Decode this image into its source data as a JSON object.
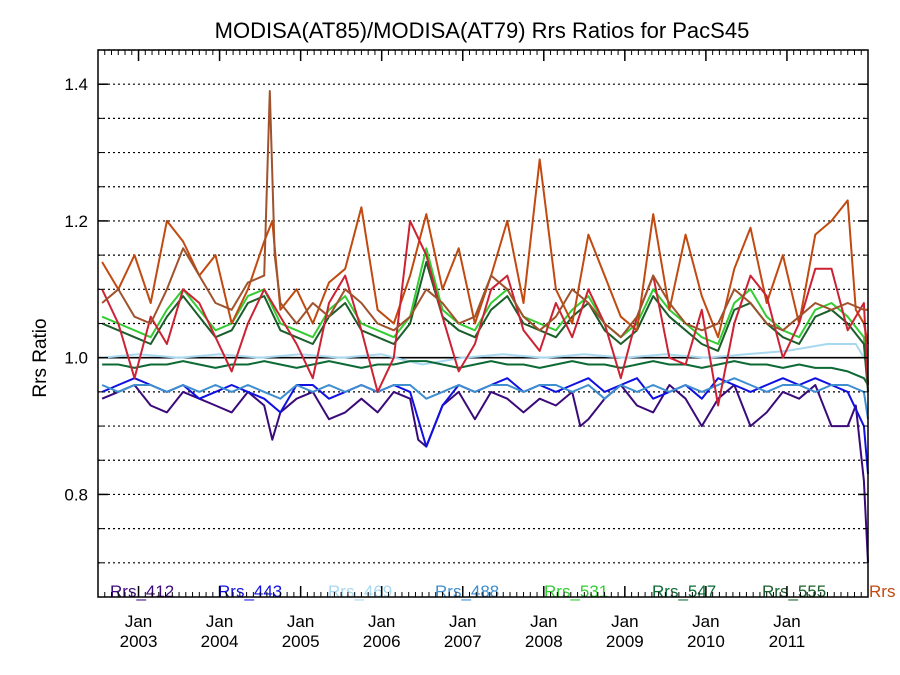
{
  "chart_data": {
    "type": "line",
    "title": "MODISA(AT85)/MODISA(AT79)  Rrs Ratios for PacS45",
    "ylabel": "Rrs Ratio",
    "xlabel": "",
    "xlim": [
      2002.5,
      2012.0
    ],
    "ylim": [
      0.65,
      1.45
    ],
    "y_ticks": [
      0.8,
      1.0,
      1.2,
      1.4
    ],
    "y_tick_labels": [
      "0.8",
      "1.0",
      "1.2",
      "1.4"
    ],
    "x_ticks": [
      2003.0,
      2004.0,
      2005.0,
      2006.0,
      2007.0,
      2008.0,
      2009.0,
      2010.0,
      2011.0
    ],
    "x_tick_labels": [
      {
        "month": "Jan",
        "year": "2003"
      },
      {
        "month": "Jan",
        "year": "2004"
      },
      {
        "month": "Jan",
        "year": "2005"
      },
      {
        "month": "Jan",
        "year": "2006"
      },
      {
        "month": "Jan",
        "year": "2007"
      },
      {
        "month": "Jan",
        "year": "2008"
      },
      {
        "month": "Jan",
        "year": "2009"
      },
      {
        "month": "Jan",
        "year": "2010"
      },
      {
        "month": "Jan",
        "year": "2011"
      }
    ],
    "grid": "horizontal dotted",
    "reference_line": 1.0,
    "legend_placement": "bottom",
    "series": [
      {
        "name": "Rrs_412",
        "color": "#3b0a7a",
        "x": [
          2002.55,
          2002.75,
          2002.95,
          2003.15,
          2003.35,
          2003.55,
          2003.75,
          2003.95,
          2004.15,
          2004.35,
          2004.55,
          2004.65,
          2004.75,
          2004.95,
          2005.15,
          2005.35,
          2005.55,
          2005.75,
          2005.95,
          2006.15,
          2006.35,
          2006.45,
          2006.55,
          2006.75,
          2006.95,
          2007.15,
          2007.35,
          2007.55,
          2007.75,
          2007.95,
          2008.15,
          2008.35,
          2008.45,
          2008.55,
          2008.75,
          2008.95,
          2009.15,
          2009.35,
          2009.55,
          2009.75,
          2009.95,
          2010.15,
          2010.35,
          2010.55,
          2010.75,
          2010.95,
          2011.15,
          2011.35,
          2011.55,
          2011.75,
          2011.85,
          2011.95,
          2012.0
        ],
        "y": [
          0.94,
          0.95,
          0.96,
          0.93,
          0.92,
          0.95,
          0.94,
          0.93,
          0.92,
          0.95,
          0.93,
          0.88,
          0.92,
          0.94,
          0.95,
          0.91,
          0.92,
          0.94,
          0.92,
          0.95,
          0.94,
          0.88,
          0.87,
          0.93,
          0.95,
          0.91,
          0.95,
          0.94,
          0.92,
          0.94,
          0.93,
          0.95,
          0.9,
          0.91,
          0.94,
          0.96,
          0.93,
          0.92,
          0.96,
          0.94,
          0.9,
          0.94,
          0.96,
          0.9,
          0.92,
          0.95,
          0.94,
          0.96,
          0.9,
          0.9,
          0.93,
          0.82,
          0.7
        ]
      },
      {
        "name": "Rrs_443",
        "color": "#1010e0",
        "x": [
          2002.55,
          2002.75,
          2002.95,
          2003.15,
          2003.35,
          2003.55,
          2003.75,
          2003.95,
          2004.15,
          2004.35,
          2004.55,
          2004.75,
          2004.95,
          2005.15,
          2005.35,
          2005.55,
          2005.75,
          2005.95,
          2006.15,
          2006.35,
          2006.55,
          2006.75,
          2006.95,
          2007.15,
          2007.35,
          2007.55,
          2007.75,
          2007.95,
          2008.15,
          2008.35,
          2008.55,
          2008.75,
          2008.95,
          2009.15,
          2009.35,
          2009.55,
          2009.75,
          2009.95,
          2010.15,
          2010.35,
          2010.55,
          2010.75,
          2010.95,
          2011.15,
          2011.35,
          2011.55,
          2011.75,
          2011.95,
          2012.0
        ],
        "y": [
          0.95,
          0.96,
          0.97,
          0.96,
          0.95,
          0.96,
          0.94,
          0.95,
          0.96,
          0.95,
          0.94,
          0.92,
          0.96,
          0.96,
          0.94,
          0.95,
          0.96,
          0.95,
          0.96,
          0.95,
          0.87,
          0.93,
          0.96,
          0.95,
          0.96,
          0.97,
          0.95,
          0.96,
          0.95,
          0.96,
          0.97,
          0.95,
          0.96,
          0.97,
          0.94,
          0.95,
          0.96,
          0.94,
          0.97,
          0.96,
          0.95,
          0.96,
          0.97,
          0.96,
          0.97,
          0.96,
          0.95,
          0.9,
          0.83
        ]
      },
      {
        "name": "Rrs_469",
        "color": "#a8d8f0",
        "x": [
          2002.55,
          2003.0,
          2003.5,
          2004.0,
          2004.5,
          2005.0,
          2005.5,
          2006.0,
          2006.5,
          2007.0,
          2007.5,
          2008.0,
          2008.5,
          2009.0,
          2009.5,
          2010.0,
          2010.5,
          2011.0,
          2011.5,
          2011.85,
          2012.0
        ],
        "y": [
          1.0,
          1.005,
          1.0,
          1.005,
          1.0,
          1.005,
          1.0,
          1.005,
          0.99,
          1.0,
          1.005,
          1.0,
          1.005,
          1.0,
          1.005,
          1.0,
          1.005,
          1.01,
          1.02,
          1.02,
          0.99
        ]
      },
      {
        "name": "Rrs_488",
        "color": "#3e8ed0",
        "x": [
          2002.55,
          2002.75,
          2002.95,
          2003.15,
          2003.35,
          2003.55,
          2003.75,
          2003.95,
          2004.15,
          2004.35,
          2004.55,
          2004.75,
          2004.95,
          2005.15,
          2005.35,
          2005.55,
          2005.75,
          2005.95,
          2006.15,
          2006.35,
          2006.55,
          2006.75,
          2006.95,
          2007.15,
          2007.35,
          2007.55,
          2007.75,
          2007.95,
          2008.15,
          2008.35,
          2008.55,
          2008.75,
          2008.95,
          2009.15,
          2009.35,
          2009.55,
          2009.75,
          2009.95,
          2010.15,
          2010.35,
          2010.55,
          2010.75,
          2010.95,
          2011.15,
          2011.35,
          2011.55,
          2011.75,
          2011.95,
          2012.0
        ],
        "y": [
          0.96,
          0.95,
          0.96,
          0.96,
          0.95,
          0.96,
          0.95,
          0.96,
          0.95,
          0.96,
          0.95,
          0.94,
          0.96,
          0.95,
          0.96,
          0.95,
          0.96,
          0.95,
          0.96,
          0.96,
          0.94,
          0.95,
          0.96,
          0.95,
          0.96,
          0.96,
          0.95,
          0.96,
          0.96,
          0.95,
          0.96,
          0.94,
          0.96,
          0.95,
          0.96,
          0.95,
          0.96,
          0.95,
          0.96,
          0.97,
          0.96,
          0.95,
          0.96,
          0.96,
          0.95,
          0.96,
          0.96,
          0.95,
          0.91
        ]
      },
      {
        "name": "Rrs_531",
        "color": "#33cc33",
        "x": [
          2002.55,
          2002.75,
          2002.95,
          2003.15,
          2003.35,
          2003.55,
          2003.75,
          2003.95,
          2004.15,
          2004.35,
          2004.55,
          2004.75,
          2004.95,
          2005.15,
          2005.35,
          2005.55,
          2005.75,
          2005.95,
          2006.15,
          2006.35,
          2006.55,
          2006.75,
          2006.95,
          2007.15,
          2007.35,
          2007.55,
          2007.75,
          2007.95,
          2008.15,
          2008.35,
          2008.55,
          2008.75,
          2008.95,
          2009.15,
          2009.35,
          2009.55,
          2009.75,
          2009.95,
          2010.15,
          2010.35,
          2010.55,
          2010.75,
          2010.95,
          2011.15,
          2011.35,
          2011.55,
          2011.75,
          2011.95,
          2012.0
        ],
        "y": [
          1.06,
          1.05,
          1.04,
          1.03,
          1.07,
          1.1,
          1.07,
          1.04,
          1.05,
          1.09,
          1.1,
          1.05,
          1.04,
          1.03,
          1.07,
          1.09,
          1.05,
          1.04,
          1.03,
          1.06,
          1.16,
          1.07,
          1.05,
          1.04,
          1.08,
          1.1,
          1.06,
          1.05,
          1.04,
          1.07,
          1.09,
          1.05,
          1.03,
          1.05,
          1.1,
          1.07,
          1.05,
          1.03,
          1.02,
          1.08,
          1.1,
          1.06,
          1.04,
          1.03,
          1.07,
          1.08,
          1.06,
          1.03,
          0.96
        ]
      },
      {
        "name": "Rrs_547",
        "color": "#0d6a35",
        "x": [
          2002.55,
          2002.75,
          2002.95,
          2003.15,
          2003.35,
          2003.55,
          2003.75,
          2003.95,
          2004.15,
          2004.35,
          2004.55,
          2004.75,
          2004.95,
          2005.15,
          2005.35,
          2005.55,
          2005.75,
          2005.95,
          2006.15,
          2006.35,
          2006.55,
          2006.75,
          2006.95,
          2007.15,
          2007.35,
          2007.55,
          2007.75,
          2007.95,
          2008.15,
          2008.35,
          2008.55,
          2008.75,
          2008.95,
          2009.15,
          2009.35,
          2009.55,
          2009.75,
          2009.95,
          2010.15,
          2010.35,
          2010.55,
          2010.75,
          2010.95,
          2011.15,
          2011.35,
          2011.55,
          2011.75,
          2011.95,
          2012.0
        ],
        "y": [
          0.99,
          0.99,
          0.985,
          0.99,
          0.99,
          0.995,
          0.99,
          0.985,
          0.99,
          0.99,
          0.995,
          0.99,
          0.985,
          0.99,
          0.995,
          0.99,
          0.985,
          0.99,
          0.99,
          0.995,
          0.995,
          0.99,
          0.985,
          0.99,
          0.995,
          0.99,
          0.99,
          0.985,
          0.99,
          0.995,
          0.99,
          0.99,
          0.985,
          0.99,
          0.995,
          0.99,
          0.99,
          0.985,
          0.99,
          0.995,
          0.99,
          0.99,
          0.985,
          0.99,
          0.985,
          0.985,
          0.98,
          0.97,
          0.96
        ]
      },
      {
        "name": "Rrs_555",
        "color": "#1a5e2a",
        "x": [
          2002.55,
          2002.75,
          2002.95,
          2003.15,
          2003.35,
          2003.55,
          2003.75,
          2003.95,
          2004.15,
          2004.35,
          2004.55,
          2004.75,
          2004.95,
          2005.15,
          2005.35,
          2005.55,
          2005.75,
          2005.95,
          2006.15,
          2006.35,
          2006.55,
          2006.75,
          2006.95,
          2007.15,
          2007.35,
          2007.55,
          2007.75,
          2007.95,
          2008.15,
          2008.35,
          2008.55,
          2008.75,
          2008.95,
          2009.15,
          2009.35,
          2009.55,
          2009.75,
          2009.95,
          2010.15,
          2010.35,
          2010.55,
          2010.75,
          2010.95,
          2011.15,
          2011.35,
          2011.55,
          2011.75,
          2011.95,
          2012.0
        ],
        "y": [
          1.05,
          1.04,
          1.03,
          1.02,
          1.06,
          1.09,
          1.06,
          1.03,
          1.04,
          1.08,
          1.09,
          1.04,
          1.03,
          1.02,
          1.06,
          1.08,
          1.04,
          1.03,
          1.02,
          1.05,
          1.14,
          1.06,
          1.04,
          1.03,
          1.07,
          1.09,
          1.05,
          1.04,
          1.03,
          1.06,
          1.08,
          1.04,
          1.02,
          1.04,
          1.09,
          1.06,
          1.04,
          1.02,
          1.01,
          1.07,
          1.08,
          1.05,
          1.03,
          1.02,
          1.06,
          1.07,
          1.05,
          1.02,
          0.95
        ]
      },
      {
        "name": "Rrs",
        "color": "#c04a10",
        "x": [
          2002.55,
          2002.75,
          2002.95,
          2003.15,
          2003.35,
          2003.55,
          2003.75,
          2003.95,
          2004.15,
          2004.35,
          2004.55,
          2004.65,
          2004.75,
          2004.95,
          2005.15,
          2005.35,
          2005.55,
          2005.75,
          2005.95,
          2006.15,
          2006.35,
          2006.55,
          2006.75,
          2006.95,
          2007.15,
          2007.35,
          2007.55,
          2007.75,
          2007.95,
          2008.15,
          2008.35,
          2008.55,
          2008.75,
          2008.95,
          2009.15,
          2009.35,
          2009.55,
          2009.75,
          2009.95,
          2010.15,
          2010.35,
          2010.55,
          2010.75,
          2010.95,
          2011.15,
          2011.35,
          2011.55,
          2011.75,
          2011.85,
          2011.95,
          2012.0
        ],
        "y": [
          1.14,
          1.1,
          1.15,
          1.08,
          1.2,
          1.17,
          1.12,
          1.15,
          1.05,
          1.1,
          1.17,
          1.2,
          1.07,
          1.1,
          1.05,
          1.11,
          1.13,
          1.22,
          1.07,
          1.05,
          1.12,
          1.21,
          1.1,
          1.16,
          1.05,
          1.12,
          1.2,
          1.08,
          1.29,
          1.1,
          1.05,
          1.18,
          1.12,
          1.06,
          1.04,
          1.21,
          1.07,
          1.18,
          1.09,
          1.03,
          1.13,
          1.19,
          1.08,
          1.15,
          1.05,
          1.18,
          1.2,
          1.23,
          1.07,
          1.05,
          1.02
        ]
      },
      {
        "color": "#cc2233",
        "x": [
          2002.55,
          2002.75,
          2002.95,
          2003.15,
          2003.35,
          2003.55,
          2003.75,
          2003.95,
          2004.15,
          2004.35,
          2004.55,
          2004.75,
          2004.95,
          2005.15,
          2005.35,
          2005.55,
          2005.75,
          2005.95,
          2006.15,
          2006.35,
          2006.55,
          2006.75,
          2006.95,
          2007.15,
          2007.35,
          2007.55,
          2007.75,
          2007.95,
          2008.15,
          2008.35,
          2008.55,
          2008.75,
          2008.95,
          2009.15,
          2009.35,
          2009.55,
          2009.75,
          2009.95,
          2010.15,
          2010.35,
          2010.55,
          2010.75,
          2010.95,
          2011.15,
          2011.35,
          2011.55,
          2011.75,
          2011.95,
          2012.0
        ],
        "y": [
          1.1,
          1.05,
          0.97,
          1.06,
          1.02,
          1.1,
          1.08,
          1.03,
          0.98,
          1.05,
          1.1,
          1.06,
          1.02,
          0.97,
          1.08,
          1.12,
          1.04,
          0.95,
          1.0,
          1.2,
          1.15,
          1.06,
          0.98,
          1.02,
          1.1,
          1.12,
          1.04,
          1.01,
          1.08,
          1.03,
          1.1,
          1.05,
          0.97,
          1.06,
          1.12,
          1.0,
          0.99,
          1.07,
          0.93,
          1.05,
          1.12,
          1.09,
          1.0,
          1.05,
          1.13,
          1.13,
          1.04,
          1.08,
          0.96
        ]
      },
      {
        "color": "#a0522d",
        "x": [
          2002.55,
          2002.75,
          2002.95,
          2003.15,
          2003.35,
          2003.55,
          2003.75,
          2003.95,
          2004.15,
          2004.35,
          2004.55,
          2004.62,
          2004.68,
          2004.75,
          2004.95,
          2005.15,
          2005.35,
          2005.55,
          2005.75,
          2005.95,
          2006.15,
          2006.35,
          2006.55,
          2006.75,
          2006.95,
          2007.15,
          2007.35,
          2007.55,
          2007.75,
          2007.95,
          2008.15,
          2008.35,
          2008.55,
          2008.75,
          2008.95,
          2009.15,
          2009.35,
          2009.55,
          2009.75,
          2009.95,
          2010.15,
          2010.35,
          2010.55,
          2010.75,
          2010.95,
          2011.15,
          2011.35,
          2011.55,
          2011.75,
          2011.95,
          2012.0
        ],
        "y": [
          1.08,
          1.1,
          1.06,
          1.05,
          1.1,
          1.16,
          1.12,
          1.08,
          1.07,
          1.11,
          1.12,
          1.39,
          1.15,
          1.08,
          1.05,
          1.08,
          1.06,
          1.1,
          1.08,
          1.05,
          1.04,
          1.06,
          1.1,
          1.08,
          1.05,
          1.06,
          1.12,
          1.1,
          1.06,
          1.04,
          1.06,
          1.1,
          1.08,
          1.05,
          1.03,
          1.06,
          1.12,
          1.08,
          1.05,
          1.04,
          1.05,
          1.1,
          1.08,
          1.05,
          1.04,
          1.06,
          1.08,
          1.07,
          1.08,
          1.07,
          1.07
        ]
      }
    ]
  }
}
